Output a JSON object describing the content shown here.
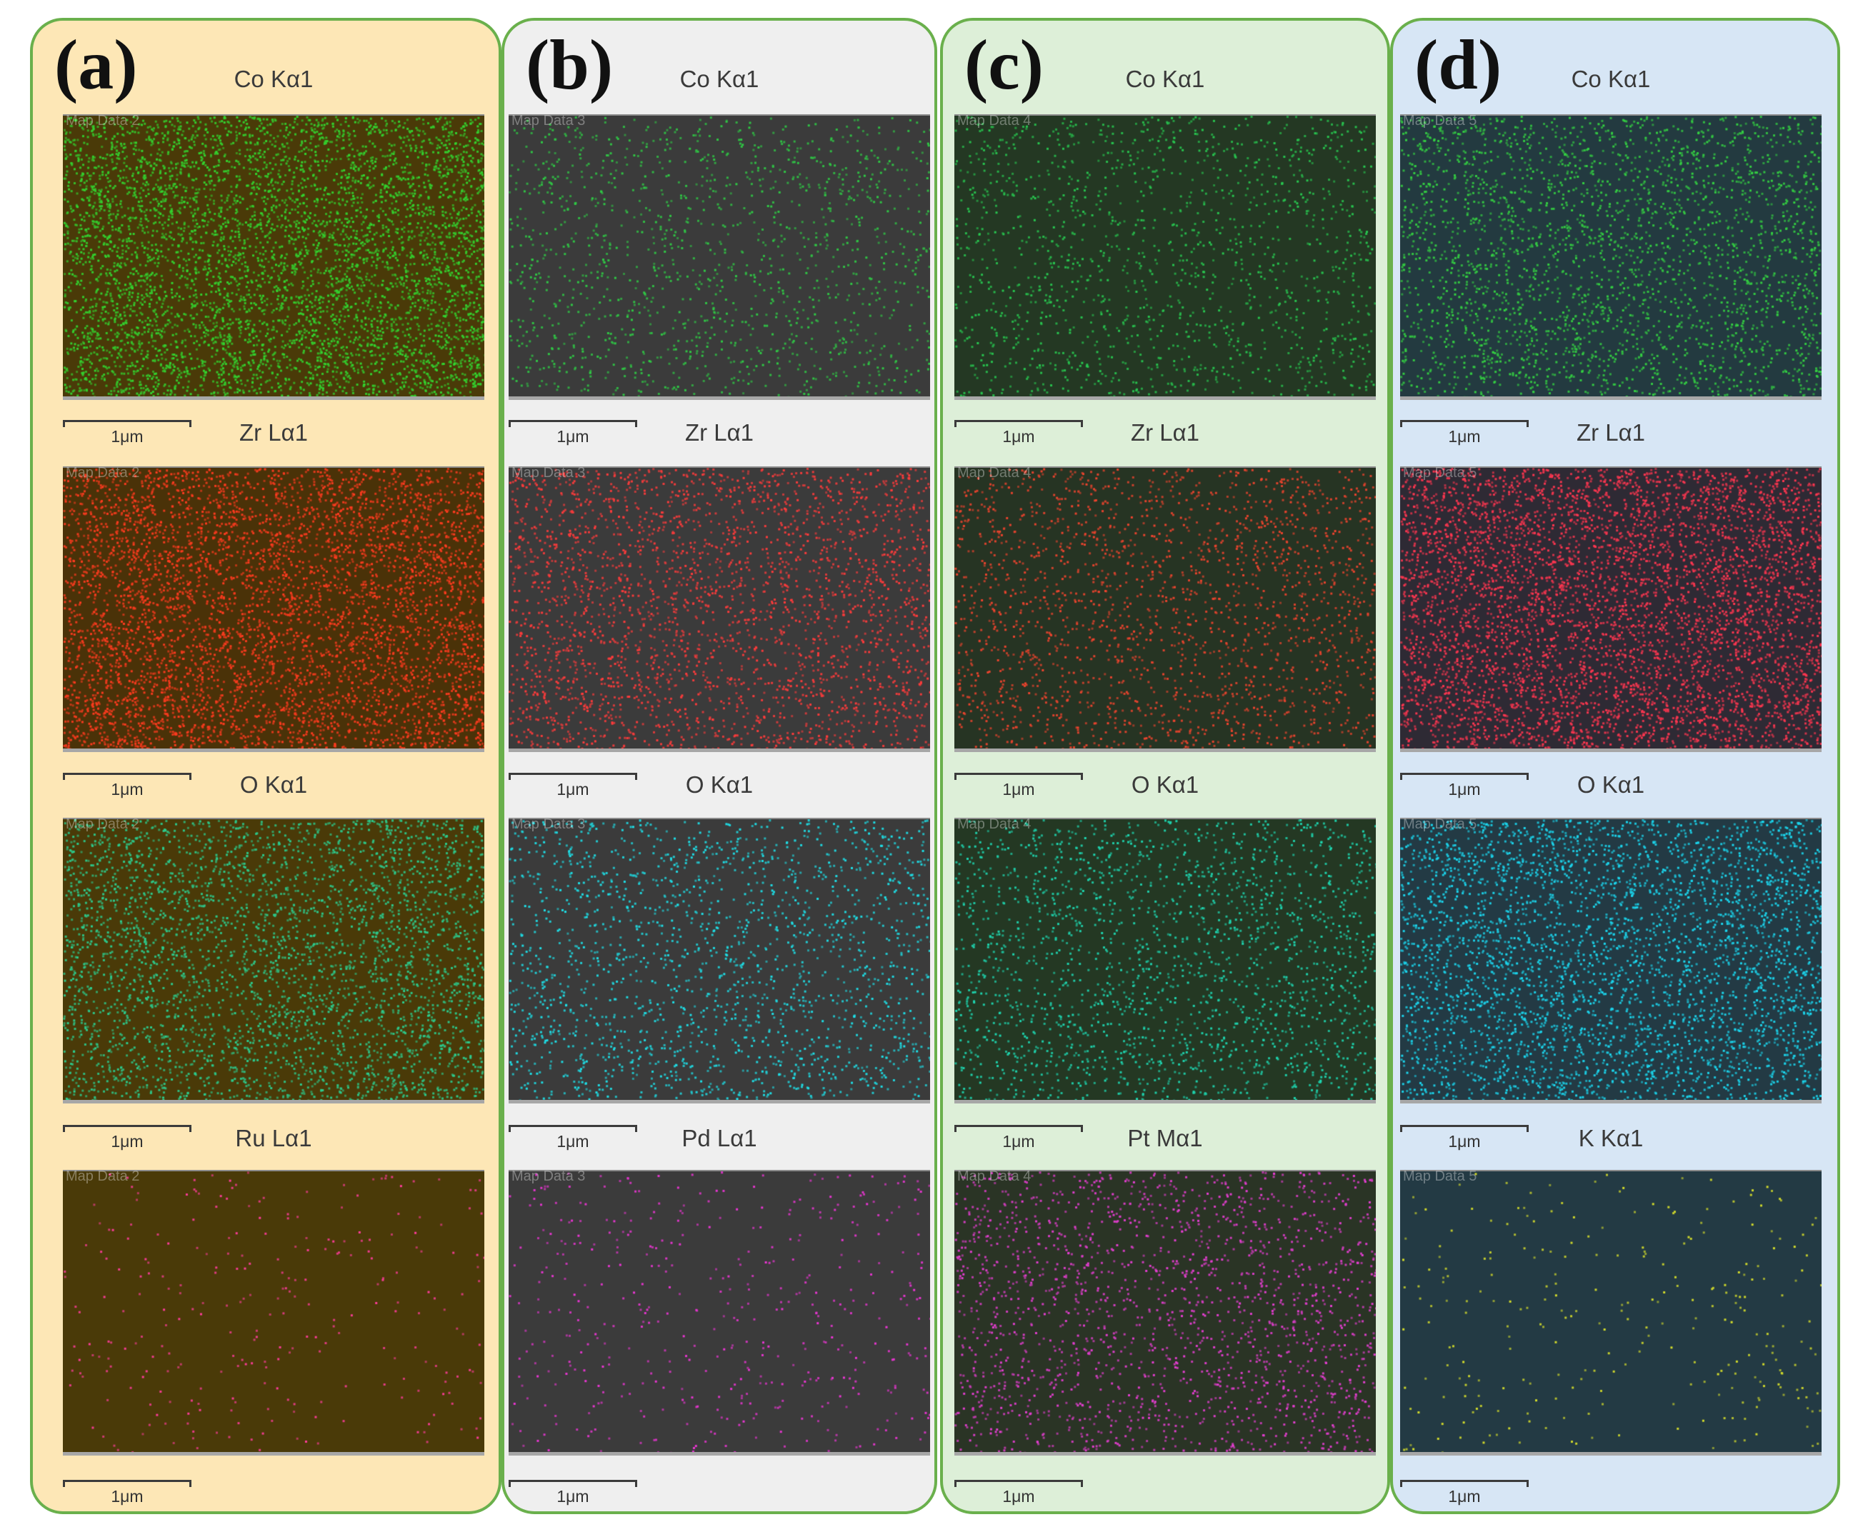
{
  "panels": [
    {
      "letter": "(a)",
      "bg": "#fde7b6",
      "maps": [
        {
          "title": "Co Kα1",
          "tag": "Map Data 2",
          "scale": "1μm",
          "bg": "#4a3a08",
          "dot": "#33d42f",
          "density": 0.6
        },
        {
          "title": "Zr Lα1",
          "tag": "Map Data 2",
          "scale": "1μm",
          "bg": "#4a3208",
          "dot": "#ff3b1f",
          "density": 0.55
        },
        {
          "title": "O Kα1",
          "tag": "Map Data 2",
          "scale": "1μm",
          "bg": "#4a3a08",
          "dot": "#2ccc8e",
          "density": 0.4
        },
        {
          "title": "Ru Lα1",
          "tag": "Map Data 2",
          "scale": "1μm",
          "bg": "#4a3a08",
          "dot": "#ff3c9c",
          "density": 0.03
        }
      ]
    },
    {
      "letter": "(b)",
      "bg": "#efefef",
      "maps": [
        {
          "title": "Co Kα1",
          "tag": "Map Data 3",
          "scale": "1μm",
          "bg": "#3b3b3b",
          "dot": "#2fca45",
          "density": 0.15
        },
        {
          "title": "Zr Lα1",
          "tag": "Map Data 3",
          "scale": "1μm",
          "bg": "#3b3b3b",
          "dot": "#ff3b3b",
          "density": 0.3
        },
        {
          "title": "O Kα1",
          "tag": "Map Data 3",
          "scale": "1μm",
          "bg": "#3b3b3b",
          "dot": "#1ee0e8",
          "density": 0.2
        },
        {
          "title": "Pd Lα1",
          "tag": "Map Data 3",
          "scale": "1μm",
          "bg": "#3b3b3b",
          "dot": "#ee35d6",
          "density": 0.05
        }
      ]
    },
    {
      "letter": "(c)",
      "bg": "#ddefd8",
      "maps": [
        {
          "title": "Co Kα1",
          "tag": "Map Data 4",
          "scale": "1μm",
          "bg": "#243823",
          "dot": "#28c850",
          "density": 0.16
        },
        {
          "title": "Zr Lα1",
          "tag": "Map Data 4",
          "scale": "1μm",
          "bg": "#263423",
          "dot": "#f0442e",
          "density": 0.22
        },
        {
          "title": "O Kα1",
          "tag": "Map Data 4",
          "scale": "1μm",
          "bg": "#243823",
          "dot": "#1ed6b0",
          "density": 0.22
        },
        {
          "title": "Pt Mα1",
          "tag": "Map Data 4",
          "scale": "1μm",
          "bg": "#2a3425",
          "dot": "#e63ed2",
          "density": 0.2
        }
      ]
    },
    {
      "letter": "(d)",
      "bg": "#d7e6f5",
      "maps": [
        {
          "title": "Co Kα1",
          "tag": "Map Data 5",
          "scale": "1μm",
          "bg": "#233a40",
          "dot": "#34d042",
          "density": 0.3
        },
        {
          "title": "Zr Lα1",
          "tag": "Map Data 5",
          "scale": "1μm",
          "bg": "#2e2a34",
          "dot": "#ff3650",
          "density": 0.55
        },
        {
          "title": "O Kα1",
          "tag": "Map Data 5",
          "scale": "1μm",
          "bg": "#233a44",
          "dot": "#1bd8f0",
          "density": 0.4
        },
        {
          "title": "K Kα1",
          "tag": "Map Data 5",
          "scale": "1μm",
          "bg": "#233a44",
          "dot": "#d8e02a",
          "density": 0.03
        }
      ]
    }
  ]
}
